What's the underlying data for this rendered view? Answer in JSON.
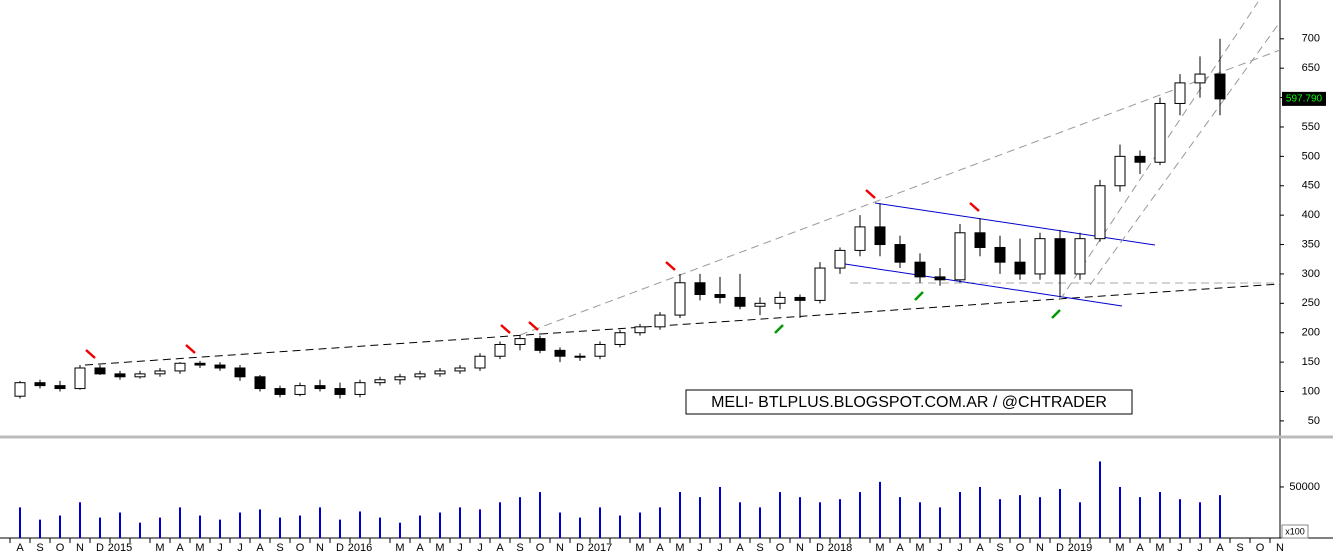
{
  "chart_data": {
    "type": "candlestick",
    "categories": [
      "A",
      "S",
      "O",
      "N",
      "D",
      "2015",
      null,
      "M",
      "A",
      "M",
      "J",
      "J",
      "A",
      "S",
      "O",
      "N",
      "D",
      "2016",
      null,
      "M",
      "A",
      "M",
      "J",
      "J",
      "A",
      "S",
      "O",
      "N",
      "D",
      "2017",
      null,
      "M",
      "A",
      "M",
      "J",
      "J",
      "A",
      "S",
      "O",
      "N",
      "D",
      "2018",
      null,
      "M",
      "A",
      "M",
      "J",
      "J",
      "A",
      "S",
      "O",
      "N",
      "D",
      "2019",
      null,
      "M",
      "A",
      "M",
      "J",
      "J",
      "A",
      "S",
      "O",
      "N"
    ],
    "open": [
      92,
      115,
      110,
      105,
      140,
      130,
      125,
      130,
      135,
      148,
      145,
      140,
      125,
      105,
      95,
      110,
      105,
      95,
      115,
      120,
      125,
      130,
      135,
      140,
      160,
      180,
      190,
      170,
      160,
      160,
      180,
      200,
      210,
      230,
      285,
      265,
      260,
      245,
      250,
      260,
      255,
      310,
      340,
      380,
      350,
      320,
      295,
      290,
      370,
      345,
      320,
      300,
      360,
      300,
      360,
      450,
      500,
      490,
      590,
      625,
      640,
      null,
      null,
      null
    ],
    "high": [
      118,
      120,
      118,
      145,
      145,
      135,
      135,
      140,
      150,
      152,
      150,
      145,
      128,
      110,
      115,
      120,
      115,
      120,
      125,
      130,
      135,
      140,
      145,
      165,
      185,
      195,
      195,
      175,
      165,
      185,
      205,
      215,
      235,
      300,
      300,
      295,
      300,
      260,
      270,
      265,
      320,
      345,
      400,
      420,
      365,
      335,
      310,
      385,
      395,
      365,
      360,
      370,
      375,
      370,
      460,
      520,
      510,
      600,
      640,
      670,
      700,
      null,
      null,
      null
    ],
    "low": [
      88,
      105,
      100,
      103,
      128,
      120,
      122,
      125,
      130,
      140,
      135,
      118,
      100,
      90,
      92,
      100,
      88,
      90,
      110,
      112,
      120,
      125,
      130,
      135,
      155,
      170,
      165,
      150,
      152,
      155,
      175,
      195,
      205,
      225,
      255,
      250,
      240,
      230,
      240,
      225,
      250,
      300,
      330,
      330,
      310,
      285,
      280,
      285,
      330,
      300,
      290,
      290,
      260,
      290,
      355,
      440,
      470,
      485,
      570,
      600,
      570,
      null,
      null,
      null
    ],
    "close": [
      115,
      110,
      105,
      140,
      130,
      125,
      130,
      135,
      148,
      145,
      140,
      125,
      105,
      95,
      110,
      105,
      95,
      115,
      120,
      125,
      130,
      135,
      140,
      160,
      180,
      190,
      170,
      160,
      160,
      180,
      200,
      210,
      230,
      285,
      265,
      260,
      245,
      250,
      260,
      255,
      310,
      340,
      380,
      350,
      320,
      295,
      290,
      370,
      345,
      320,
      300,
      360,
      300,
      360,
      450,
      500,
      490,
      590,
      625,
      640,
      597.79,
      null,
      null,
      null
    ],
    "volume": [
      30000,
      18000,
      22000,
      35000,
      20000,
      25000,
      15000,
      20000,
      30000,
      22000,
      18000,
      25000,
      28000,
      20000,
      22000,
      30000,
      18000,
      26000,
      20000,
      15000,
      22000,
      25000,
      30000,
      28000,
      35000,
      40000,
      45000,
      25000,
      20000,
      30000,
      22000,
      25000,
      30000,
      45000,
      40000,
      50000,
      35000,
      30000,
      45000,
      40000,
      35000,
      38000,
      45000,
      55000,
      40000,
      35000,
      30000,
      45000,
      50000,
      38000,
      42000,
      40000,
      48000,
      35000,
      75000,
      50000,
      40000,
      45000,
      38000,
      35000,
      42000,
      null,
      null,
      null
    ],
    "up_color": "#ffffff",
    "down_color": "#000000",
    "volume_color": "#0000cc",
    "ylim": [
      26,
      766
    ],
    "yticks": [
      50,
      100,
      150,
      200,
      250,
      300,
      350,
      400,
      450,
      500,
      550,
      600,
      650,
      700
    ],
    "volume_ylim": [
      0,
      96000
    ],
    "volume_yticks": [
      50000
    ],
    "volume_unit": "x100",
    "last_price": {
      "value": 597.79,
      "label": "597.790"
    },
    "annotation": "MELI- BTLPLUS.BLOGSPOT.COM.AR / @CHTRADER"
  }
}
